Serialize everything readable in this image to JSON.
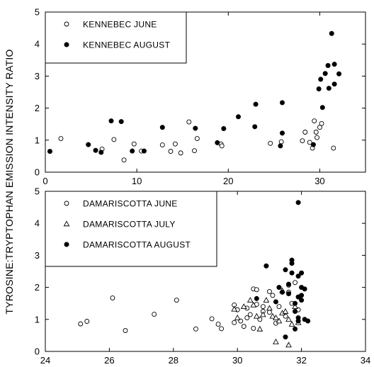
{
  "figure": {
    "shared_ylabel": "TYROSINE:TRYPTOPHAN EMISSION INTENSITY RATIO"
  },
  "chart_data": [
    {
      "type": "scatter",
      "title": "",
      "xlabel": "",
      "ylabel": "TYROSINE:TRYPTOPHAN EMISSION INTENSITY RATIO",
      "xlim": [
        0,
        35
      ],
      "ylim": [
        0,
        5
      ],
      "xticks": [
        0,
        10,
        20,
        30
      ],
      "yticks": [
        0,
        1,
        2,
        3,
        4,
        5
      ],
      "grid": false,
      "legend_position": "top-left",
      "series": [
        {
          "name": "KENNEBEC JUNE",
          "marker": "open-circle",
          "points": [
            [
              1.7,
              1.05
            ],
            [
              6.2,
              0.72
            ],
            [
              7.5,
              1.02
            ],
            [
              8.6,
              0.38
            ],
            [
              9.7,
              0.88
            ],
            [
              10.5,
              0.66
            ],
            [
              12.8,
              0.85
            ],
            [
              13.7,
              0.65
            ],
            [
              14.2,
              0.88
            ],
            [
              14.8,
              0.6
            ],
            [
              15.7,
              1.57
            ],
            [
              16.3,
              0.67
            ],
            [
              16.6,
              1.05
            ],
            [
              19.2,
              0.88
            ],
            [
              19.3,
              0.82
            ],
            [
              24.6,
              0.9
            ],
            [
              25.8,
              0.95
            ],
            [
              28.1,
              0.98
            ],
            [
              28.4,
              1.25
            ],
            [
              28.9,
              0.93
            ],
            [
              29.2,
              0.75
            ],
            [
              29.4,
              1.6
            ],
            [
              29.6,
              1.25
            ],
            [
              29.7,
              1.08
            ],
            [
              30.0,
              1.4
            ],
            [
              30.2,
              1.52
            ],
            [
              31.5,
              0.75
            ]
          ]
        },
        {
          "name": "KENNEBEC AUGUST",
          "marker": "filled-circle",
          "points": [
            [
              0.5,
              0.65
            ],
            [
              4.7,
              0.86
            ],
            [
              5.5,
              0.68
            ],
            [
              6.1,
              0.62
            ],
            [
              7.2,
              1.6
            ],
            [
              8.3,
              1.58
            ],
            [
              9.5,
              0.66
            ],
            [
              10.8,
              0.66
            ],
            [
              12.8,
              1.4
            ],
            [
              16.4,
              1.37
            ],
            [
              18.8,
              0.92
            ],
            [
              19.5,
              1.36
            ],
            [
              21.1,
              1.73
            ],
            [
              22.9,
              1.42
            ],
            [
              23.0,
              2.12
            ],
            [
              25.7,
              0.82
            ],
            [
              25.9,
              1.22
            ],
            [
              25.9,
              2.17
            ],
            [
              29.3,
              0.86
            ],
            [
              29.9,
              2.6
            ],
            [
              30.1,
              2.9
            ],
            [
              30.3,
              2.02
            ],
            [
              30.6,
              3.08
            ],
            [
              30.9,
              3.33
            ],
            [
              31.0,
              2.62
            ],
            [
              31.3,
              4.33
            ],
            [
              31.6,
              3.37
            ],
            [
              31.6,
              2.75
            ],
            [
              32.1,
              3.07
            ]
          ]
        }
      ]
    },
    {
      "type": "scatter",
      "title": "",
      "xlabel": "",
      "ylabel": "TYROSINE:TRYPTOPHAN EMISSION INTENSITY RATIO",
      "xlim": [
        24,
        34
      ],
      "ylim": [
        0,
        5
      ],
      "xticks": [
        24,
        26,
        28,
        30,
        32,
        34
      ],
      "yticks": [
        0,
        1,
        2,
        3,
        4,
        5
      ],
      "grid": false,
      "legend_position": "top-left",
      "series": [
        {
          "name": "DAMARISCOTTA JUNE",
          "marker": "open-circle",
          "points": [
            [
              25.1,
              0.86
            ],
            [
              25.3,
              0.94
            ],
            [
              26.1,
              1.67
            ],
            [
              26.5,
              0.65
            ],
            [
              27.4,
              1.16
            ],
            [
              28.1,
              1.6
            ],
            [
              28.7,
              0.7
            ],
            [
              29.2,
              1.02
            ],
            [
              29.4,
              0.85
            ],
            [
              29.5,
              0.71
            ],
            [
              29.9,
              1.45
            ],
            [
              29.9,
              0.9
            ],
            [
              30.0,
              1.3
            ],
            [
              30.1,
              0.95
            ],
            [
              30.2,
              0.78
            ],
            [
              30.3,
              1.35
            ],
            [
              30.4,
              1.15
            ],
            [
              30.5,
              0.72
            ],
            [
              30.5,
              1.95
            ],
            [
              30.6,
              1.93
            ],
            [
              30.6,
              1.47
            ],
            [
              30.7,
              1.0
            ],
            [
              30.8,
              1.25
            ],
            [
              30.8,
              1.4
            ],
            [
              30.9,
              2.67
            ],
            [
              31.0,
              1.87
            ],
            [
              31.0,
              1.22
            ],
            [
              31.2,
              0.88
            ],
            [
              31.3,
              1.4
            ],
            [
              31.5,
              1.1
            ],
            [
              31.6,
              2.07
            ],
            [
              31.7,
              1.5
            ],
            [
              31.8,
              2.15
            ],
            [
              31.9,
              1.3
            ],
            [
              31.6,
              1.85
            ],
            [
              30.3,
              1.05
            ],
            [
              31.1,
              1.75
            ]
          ]
        },
        {
          "name": "DAMARISCOTTA JULY",
          "marker": "open-triangle",
          "points": [
            [
              29.9,
              1.32
            ],
            [
              30.0,
              1.05
            ],
            [
              30.2,
              1.4
            ],
            [
              30.4,
              1.6
            ],
            [
              30.5,
              1.45
            ],
            [
              30.6,
              1.1
            ],
            [
              30.8,
              1.15
            ],
            [
              30.9,
              1.6
            ],
            [
              31.0,
              1.35
            ],
            [
              31.1,
              1.1
            ],
            [
              31.2,
              1.05
            ],
            [
              31.3,
              0.95
            ],
            [
              31.4,
              1.2
            ],
            [
              31.5,
              1.25
            ],
            [
              31.6,
              1.0
            ],
            [
              31.7,
              0.85
            ],
            [
              31.2,
              0.3
            ],
            [
              31.6,
              0.2
            ],
            [
              31.8,
              1.4
            ],
            [
              31.9,
              0.9
            ],
            [
              30.7,
              0.7
            ],
            [
              31.4,
              1.9
            ]
          ]
        },
        {
          "name": "DAMARISCOTTA AUGUST",
          "marker": "filled-circle",
          "points": [
            [
              30.6,
              1.65
            ],
            [
              30.9,
              2.67
            ],
            [
              31.2,
              1.55
            ],
            [
              31.3,
              2.0
            ],
            [
              31.4,
              1.85
            ],
            [
              31.5,
              0.45
            ],
            [
              31.5,
              2.55
            ],
            [
              31.6,
              1.8
            ],
            [
              31.6,
              2.1
            ],
            [
              31.7,
              2.85
            ],
            [
              31.7,
              2.75
            ],
            [
              31.7,
              2.45
            ],
            [
              31.8,
              1.5
            ],
            [
              31.8,
              0.7
            ],
            [
              31.8,
              1.25
            ],
            [
              31.9,
              2.35
            ],
            [
              31.9,
              1.05
            ],
            [
              31.9,
              0.95
            ],
            [
              31.9,
              4.65
            ],
            [
              32.0,
              2.45
            ],
            [
              32.0,
              2.0
            ],
            [
              32.0,
              1.75
            ],
            [
              32.0,
              1.6
            ],
            [
              32.1,
              1.0
            ],
            [
              32.2,
              0.95
            ],
            [
              32.1,
              1.95
            ],
            [
              31.9,
              1.7
            ]
          ]
        }
      ]
    }
  ]
}
